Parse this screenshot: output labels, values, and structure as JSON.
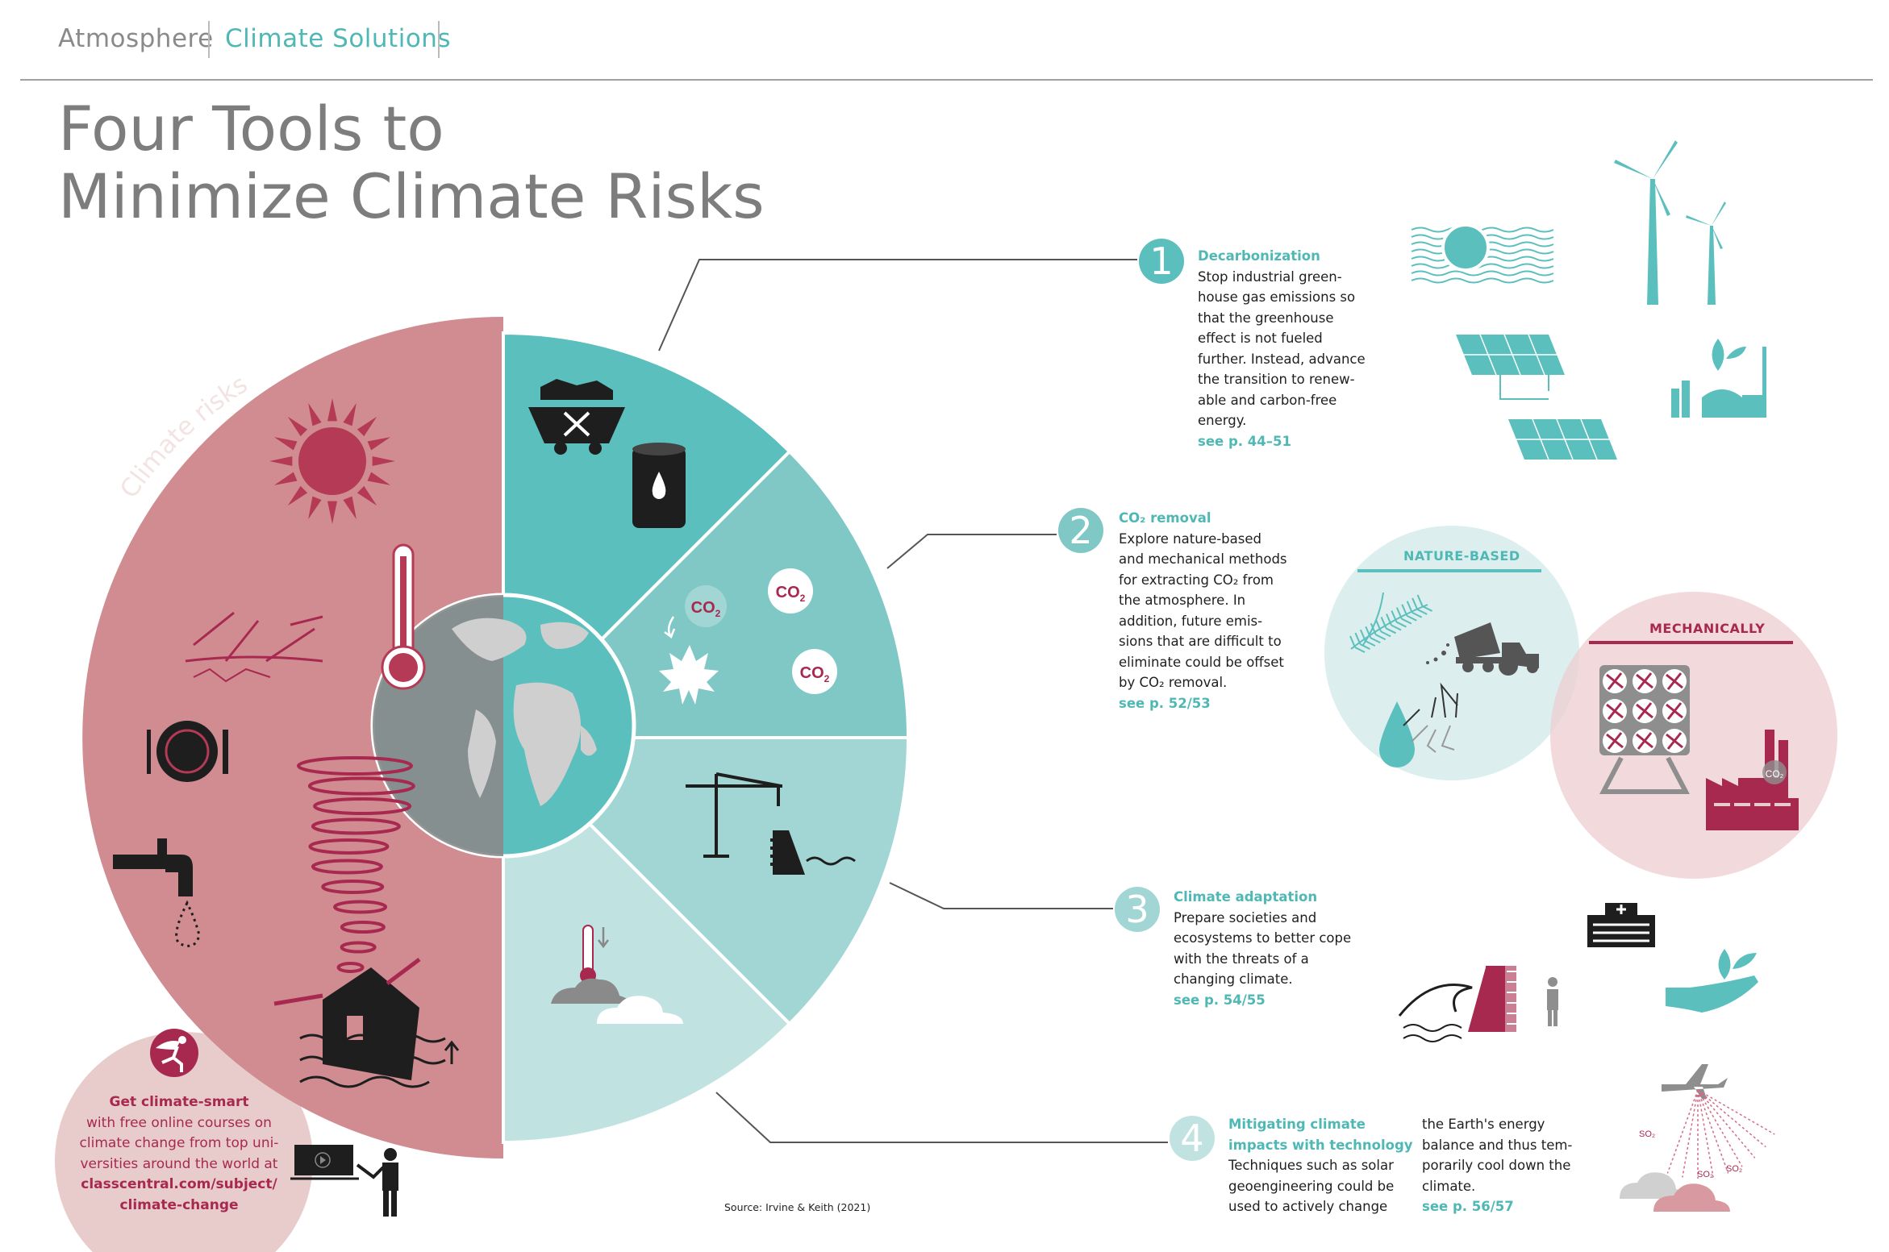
{
  "header": {
    "breadcrumb_section": "Atmosphere",
    "breadcrumb_current": "Climate Solutions"
  },
  "title": {
    "line1": "Four Tools to",
    "line2": "Minimize Climate Risks"
  },
  "left_label": "Climate risks",
  "pie_labels": {
    "co2": "CO",
    "sub": "2"
  },
  "tools": [
    {
      "number": "1",
      "heading": "Decarbonization",
      "lines": [
        "Stop industrial green-",
        "house gas emissions so",
        "that the greenhouse",
        "effect is not fueled",
        "further. Instead, advance",
        "the transition to renew-",
        "able and carbon-free",
        "energy."
      ],
      "see": "see p. 44–51"
    },
    {
      "number": "2",
      "heading": "CO₂ removal",
      "lines": [
        "Explore nature-based",
        "and mechanical methods",
        "for extracting CO₂ from",
        "the atmosphere. In",
        "addition, future emis-",
        "sions that are difficult to",
        "eliminate could be offset",
        "by CO₂ removal."
      ],
      "see": "see p. 52/53"
    },
    {
      "number": "3",
      "heading": "Climate adaptation",
      "lines": [
        "Prepare societies and",
        "ecosystems to better cope",
        "with the threats of a",
        "changing climate."
      ],
      "see": "see p. 54/55"
    },
    {
      "number": "4",
      "heading_lines": [
        "Mitigating climate",
        "impacts with technology"
      ],
      "lines": [
        "Techniques such as solar",
        "geoengineering could be",
        "used to actively change"
      ],
      "lines_col2": [
        "the Earth's energy",
        "balance and thus tem-",
        "porarily cool down the",
        "climate."
      ],
      "see": "see p. 56/57"
    }
  ],
  "co2_removal_methods": {
    "nature_based": "NATURE-BASED",
    "mechanically": "MECHANICALLY",
    "factory_label": "CO₂"
  },
  "geoengineering_labels": [
    "SO₂",
    "SO₂",
    "SO₂"
  ],
  "promo": {
    "headline": "Get climate-smart",
    "lines": [
      "with free online courses on",
      "climate change from top uni-",
      "versities around the world at"
    ],
    "link_lines": [
      "classcentral.com/subject/",
      "climate-change"
    ]
  },
  "source": "Source: Irvine & Keith (2021)",
  "colors": {
    "teal1": "#5bbfbd",
    "teal2": "#7fc8c6",
    "teal3": "#a1d6d4",
    "teal4": "#c0e3e1",
    "risk_pink": "#d08c90",
    "crimson": "#a8294f",
    "gray_text": "#7d7d7d"
  }
}
